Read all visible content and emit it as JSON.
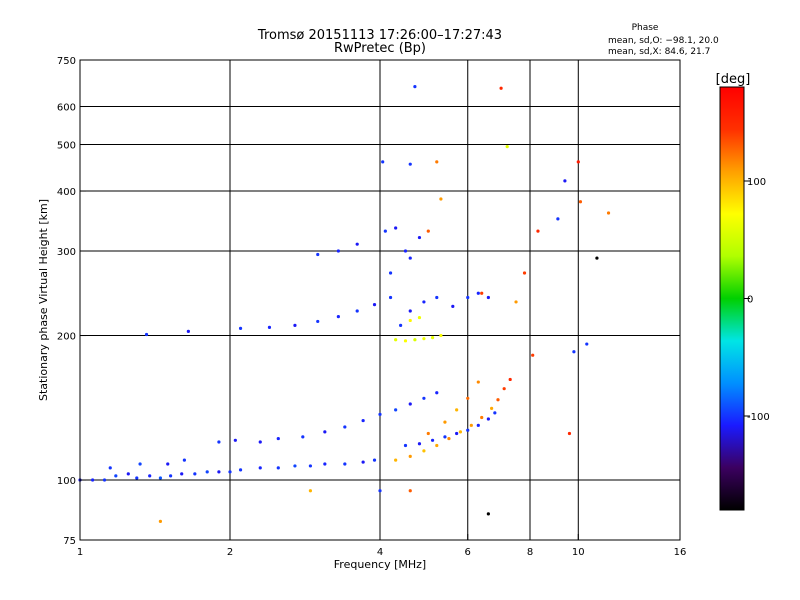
{
  "chart_data": {
    "type": "scatter",
    "title": "Tromsø 20151113 17:26:00–17:27:43",
    "subtitle": "RwPretec (Bp)",
    "xlabel": "Frequency [MHz]",
    "ylabel": "Stationary phase Virtual Height [km]",
    "x_scale": "log",
    "y_scale": "log",
    "xlim": [
      1,
      16
    ],
    "ylim": [
      75,
      750
    ],
    "x_ticks": [
      1,
      2,
      4,
      6,
      8,
      10,
      16
    ],
    "y_ticks": [
      75,
      100,
      200,
      300,
      400,
      500,
      600,
      750
    ],
    "x_grid": [
      2,
      4,
      6,
      8,
      10
    ],
    "y_grid": [
      100,
      200,
      300,
      400,
      500,
      600
    ],
    "grid": true,
    "phase_stats": {
      "heading": "Phase",
      "line_o": "mean, sd,O: −98.1, 20.0",
      "line_x": "mean, sd,X:  84.6, 21.7"
    },
    "colorbar": {
      "label": "[deg]",
      "range": [
        -180,
        180
      ],
      "ticks": [
        100,
        0,
        -100
      ],
      "stops": [
        "#000000",
        "#3b0060",
        "#1a1aff",
        "#0090ff",
        "#00e5e5",
        "#00d000",
        "#b0ff00",
        "#ffff00",
        "#ffa000",
        "#ff3000",
        "#ff0000"
      ]
    },
    "series": [
      {
        "points": [
          [
            1.0,
            100,
            -110
          ],
          [
            1.06,
            100,
            -105
          ],
          [
            1.12,
            100,
            -100
          ],
          [
            1.18,
            102,
            -95
          ],
          [
            1.25,
            103,
            -110
          ],
          [
            1.3,
            101,
            -100
          ],
          [
            1.38,
            102,
            -105
          ],
          [
            1.45,
            101,
            -90
          ],
          [
            1.52,
            102,
            -100
          ],
          [
            1.6,
            103,
            -110
          ],
          [
            1.7,
            103,
            -100
          ],
          [
            1.8,
            104,
            -95
          ],
          [
            1.9,
            104,
            -110
          ],
          [
            2.0,
            104,
            -100
          ],
          [
            2.1,
            105,
            -100
          ],
          [
            2.3,
            106,
            -105
          ],
          [
            2.5,
            106,
            -100
          ],
          [
            2.7,
            107,
            -95
          ],
          [
            2.9,
            107,
            -100
          ],
          [
            3.1,
            108,
            -105
          ],
          [
            3.4,
            108,
            -100
          ],
          [
            3.7,
            109,
            -110
          ],
          [
            3.9,
            110,
            -100
          ],
          [
            1.15,
            106,
            -100
          ],
          [
            1.32,
            108,
            -95
          ],
          [
            1.5,
            108,
            -110
          ],
          [
            1.62,
            110,
            -100
          ]
        ]
      },
      {
        "points": [
          [
            2.3,
            120,
            -110
          ],
          [
            2.5,
            122,
            -105
          ],
          [
            2.8,
            123,
            -100
          ],
          [
            3.1,
            126,
            -110
          ],
          [
            3.4,
            129,
            -100
          ],
          [
            3.7,
            133,
            -105
          ],
          [
            4.0,
            137,
            -100
          ],
          [
            4.3,
            140,
            -95
          ],
          [
            4.6,
            144,
            -110
          ],
          [
            4.9,
            148,
            -100
          ],
          [
            5.2,
            152,
            -105
          ],
          [
            1.9,
            120,
            -100
          ],
          [
            2.05,
            121,
            -110
          ]
        ]
      },
      {
        "points": [
          [
            2.1,
            207,
            -100
          ],
          [
            2.4,
            208,
            -105
          ],
          [
            2.7,
            210,
            -110
          ],
          [
            3.0,
            214,
            -100
          ],
          [
            3.3,
            219,
            -105
          ],
          [
            3.6,
            225,
            -100
          ],
          [
            3.9,
            232,
            -110
          ],
          [
            4.2,
            240,
            -100
          ]
        ]
      },
      {
        "points": [
          [
            4.3,
            196,
            60
          ],
          [
            4.5,
            195,
            70
          ],
          [
            4.7,
            196,
            55
          ],
          [
            4.9,
            197,
            65
          ],
          [
            5.1,
            198,
            60
          ],
          [
            5.3,
            200,
            70
          ],
          [
            4.6,
            215,
            75
          ],
          [
            4.8,
            218,
            65
          ]
        ]
      },
      {
        "points": [
          [
            4.3,
            110,
            100
          ],
          [
            4.6,
            112,
            110
          ],
          [
            4.9,
            115,
            95
          ],
          [
            5.2,
            118,
            105
          ],
          [
            5.5,
            122,
            115
          ],
          [
            5.8,
            126,
            100
          ],
          [
            6.1,
            130,
            110
          ],
          [
            6.4,
            135,
            120
          ],
          [
            6.7,
            141,
            105
          ],
          [
            6.9,
            147,
            130
          ],
          [
            7.1,
            155,
            140
          ],
          [
            7.3,
            162,
            150
          ],
          [
            5.0,
            125,
            120
          ],
          [
            5.4,
            132,
            110
          ],
          [
            5.7,
            140,
            100
          ],
          [
            6.0,
            148,
            125
          ],
          [
            6.3,
            160,
            115
          ]
        ]
      },
      {
        "points": [
          [
            4.5,
            118,
            -100
          ],
          [
            4.8,
            119,
            -110
          ],
          [
            5.1,
            121,
            -105
          ],
          [
            5.4,
            123,
            -100
          ],
          [
            5.7,
            125,
            -110
          ],
          [
            6.0,
            127,
            -100
          ],
          [
            6.3,
            130,
            -105
          ],
          [
            6.6,
            134,
            -110
          ],
          [
            6.8,
            138,
            -100
          ]
        ]
      },
      {
        "points": [
          [
            4.4,
            210,
            -100
          ],
          [
            4.6,
            225,
            -110
          ],
          [
            4.9,
            235,
            -105
          ],
          [
            5.2,
            240,
            -100
          ],
          [
            5.6,
            230,
            -110
          ],
          [
            6.0,
            240,
            -100
          ],
          [
            6.3,
            245,
            -105
          ],
          [
            6.6,
            240,
            -110
          ],
          [
            4.2,
            270,
            -100
          ],
          [
            4.5,
            300,
            -105
          ],
          [
            4.8,
            320,
            -110
          ],
          [
            3.0,
            295,
            -100
          ],
          [
            3.3,
            300,
            -105
          ],
          [
            3.6,
            310,
            -110
          ],
          [
            4.1,
            330,
            -100
          ],
          [
            4.3,
            335,
            -110
          ],
          [
            4.6,
            290,
            -105
          ]
        ]
      },
      {
        "points": [
          [
            4.05,
            460,
            -100
          ],
          [
            4.6,
            455,
            -100
          ],
          [
            5.2,
            460,
            120
          ],
          [
            5.3,
            385,
            110
          ],
          [
            5.0,
            330,
            130
          ],
          [
            4.7,
            660,
            -100
          ],
          [
            7.0,
            655,
            150
          ],
          [
            7.2,
            495,
            60
          ],
          [
            9.4,
            420,
            -110
          ],
          [
            10.0,
            460,
            160
          ],
          [
            10.1,
            380,
            130
          ],
          [
            10.9,
            290,
            -180
          ],
          [
            11.5,
            360,
            120
          ],
          [
            8.3,
            330,
            150
          ],
          [
            7.8,
            270,
            140
          ],
          [
            9.1,
            350,
            -100
          ],
          [
            1.36,
            201,
            -100
          ],
          [
            1.65,
            204,
            -110
          ],
          [
            2.9,
            95,
            100
          ],
          [
            4.0,
            95,
            -100
          ],
          [
            4.6,
            95,
            130
          ],
          [
            1.45,
            82,
            110
          ],
          [
            6.6,
            85,
            -180
          ],
          [
            9.6,
            125,
            150
          ],
          [
            10.4,
            192,
            -100
          ],
          [
            9.8,
            185,
            -100
          ],
          [
            8.1,
            182,
            140
          ],
          [
            6.4,
            245,
            140
          ],
          [
            7.5,
            235,
            110
          ]
        ]
      }
    ]
  }
}
